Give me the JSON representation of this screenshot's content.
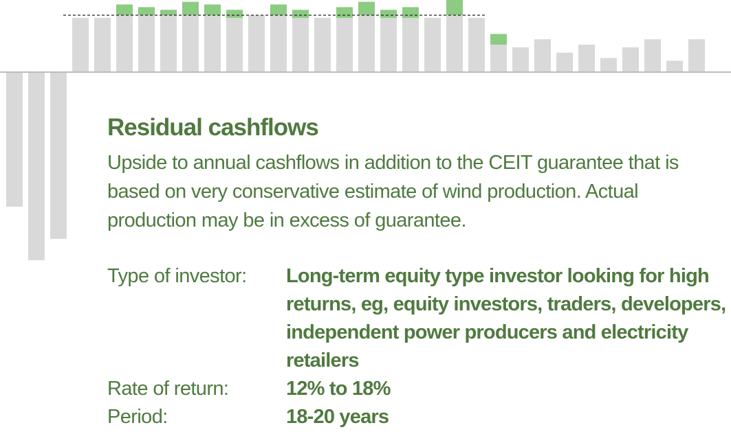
{
  "chart_data": {
    "type": "bar",
    "description_note": "",
    "neutral_color": "#d9d9d9",
    "highlight_color": "#8ccb82",
    "guarantee_line": 21,
    "values": [
      -50,
      -70,
      -62,
      20,
      20,
      21,
      21,
      21,
      21,
      21,
      20,
      21,
      21,
      20,
      20,
      20,
      21,
      20,
      20,
      20,
      21,
      20,
      10,
      9,
      12,
      7,
      10,
      5,
      9,
      12,
      4,
      12
    ],
    "upside": [
      0,
      0,
      0,
      0,
      0,
      4,
      3,
      2,
      5,
      4,
      3,
      0,
      4,
      3,
      0,
      4,
      5,
      3,
      4,
      0,
      6,
      0,
      4,
      0,
      0,
      0,
      0,
      0,
      0,
      0,
      0,
      0
    ]
  },
  "text": {
    "title": "Residual cashflows",
    "description": "Upside to annual cashflows in addition to the CEIT guarantee that is based on very conservative estimate of wind production. Actual production may be in excess of guarantee.",
    "investor_label": "Type of investor:",
    "investor_value": "Long-term equity type investor looking for high returns, eg, equity investors, traders, developers, independent power producers and electricity retailers",
    "return_label": "Rate of return:",
    "return_value": "12% to 18%",
    "period_label": "Period:",
    "period_value": "18-20 years"
  }
}
